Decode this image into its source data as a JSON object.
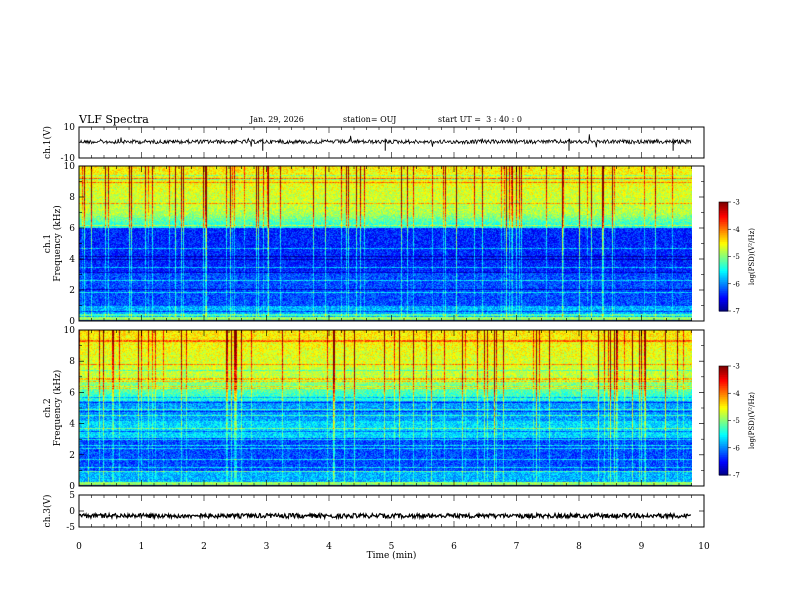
{
  "header": {
    "title": "VLF Spectra",
    "date": "Jan. 29, 2026",
    "station": "station= OUJ",
    "start_ut": "start UT =  3 : 40 : 0"
  },
  "chart_data": {
    "type": "heatmap",
    "xlabel": "Time (min)",
    "xlim": [
      0,
      10
    ],
    "x_ticks": [
      "0",
      "1",
      "2",
      "3",
      "4",
      "5",
      "6",
      "7",
      "8",
      "9",
      "10"
    ],
    "data_end_min": 9.8,
    "panels": [
      {
        "kind": "waveform",
        "ylabel": "ch.1(V)",
        "ylim": [
          -10,
          10
        ],
        "y_ticks": [
          "10",
          "-10"
        ],
        "baseline": 0.5
      },
      {
        "kind": "spectrogram",
        "ylabel_line1": "ch.1",
        "ylabel_line2": "Frequency (kHz)",
        "ylim": [
          0,
          10
        ],
        "y_ticks": [
          "0",
          "2",
          "4",
          "6",
          "8",
          "10"
        ],
        "colorbar": {
          "label": "log(PSD)(V²/Hz)",
          "range": [
            -7,
            -3
          ],
          "ticks": [
            "-3",
            "-4",
            "-5",
            "-6",
            "-7"
          ]
        }
      },
      {
        "kind": "spectrogram",
        "ylabel_line1": "ch.2",
        "ylabel_line2": "Frequency (kHz)",
        "ylim": [
          0,
          10
        ],
        "y_ticks": [
          "0",
          "2",
          "4",
          "6",
          "8",
          "10"
        ],
        "colorbar": {
          "label": "log(PSD)(V²/Hz)",
          "range": [
            -7,
            -3
          ],
          "ticks": [
            "-3",
            "-4",
            "-5",
            "-6",
            "-7"
          ]
        }
      },
      {
        "kind": "waveform",
        "ylabel": "ch.3(V)",
        "ylim": [
          -5,
          5
        ],
        "y_ticks": [
          "5",
          "0",
          "-5"
        ],
        "baseline": -1.5
      }
    ]
  }
}
